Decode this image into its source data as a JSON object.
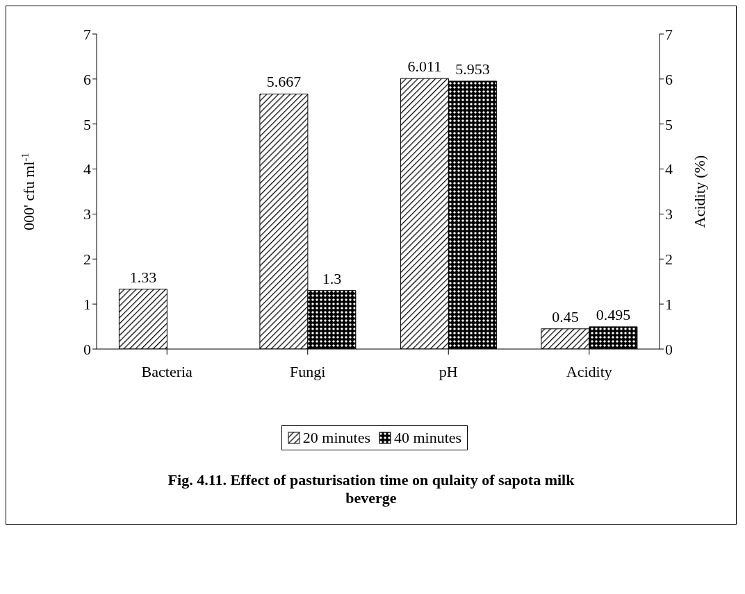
{
  "chart_data": {
    "type": "bar",
    "title": "Fig. 4.11. Effect of pasturisation time on qulaity of sapota milk beverge",
    "categories": [
      "Bacteria",
      "Fungi",
      "pH",
      "Acidity"
    ],
    "series": [
      {
        "name": "20 minutes",
        "color": "#000000",
        "values": [
          1.33,
          5.667,
          6.011,
          0.45
        ]
      },
      {
        "name": "40 minutes",
        "color": "#000000",
        "values": [
          null,
          1.3,
          5.953,
          0.495
        ]
      }
    ],
    "ylabel": "000' cfu ml$^{-1}$",
    "y2label": "Acidity (%)",
    "ylim": [
      0,
      7
    ],
    "yticks": [
      0,
      1,
      2,
      3,
      4,
      5,
      6,
      7
    ],
    "y2lim": [
      0,
      7
    ],
    "y2ticks": [
      0,
      1,
      2,
      3,
      4,
      5,
      6,
      7
    ],
    "data_labels": true,
    "legend": "bottom",
    "grid": false
  }
}
